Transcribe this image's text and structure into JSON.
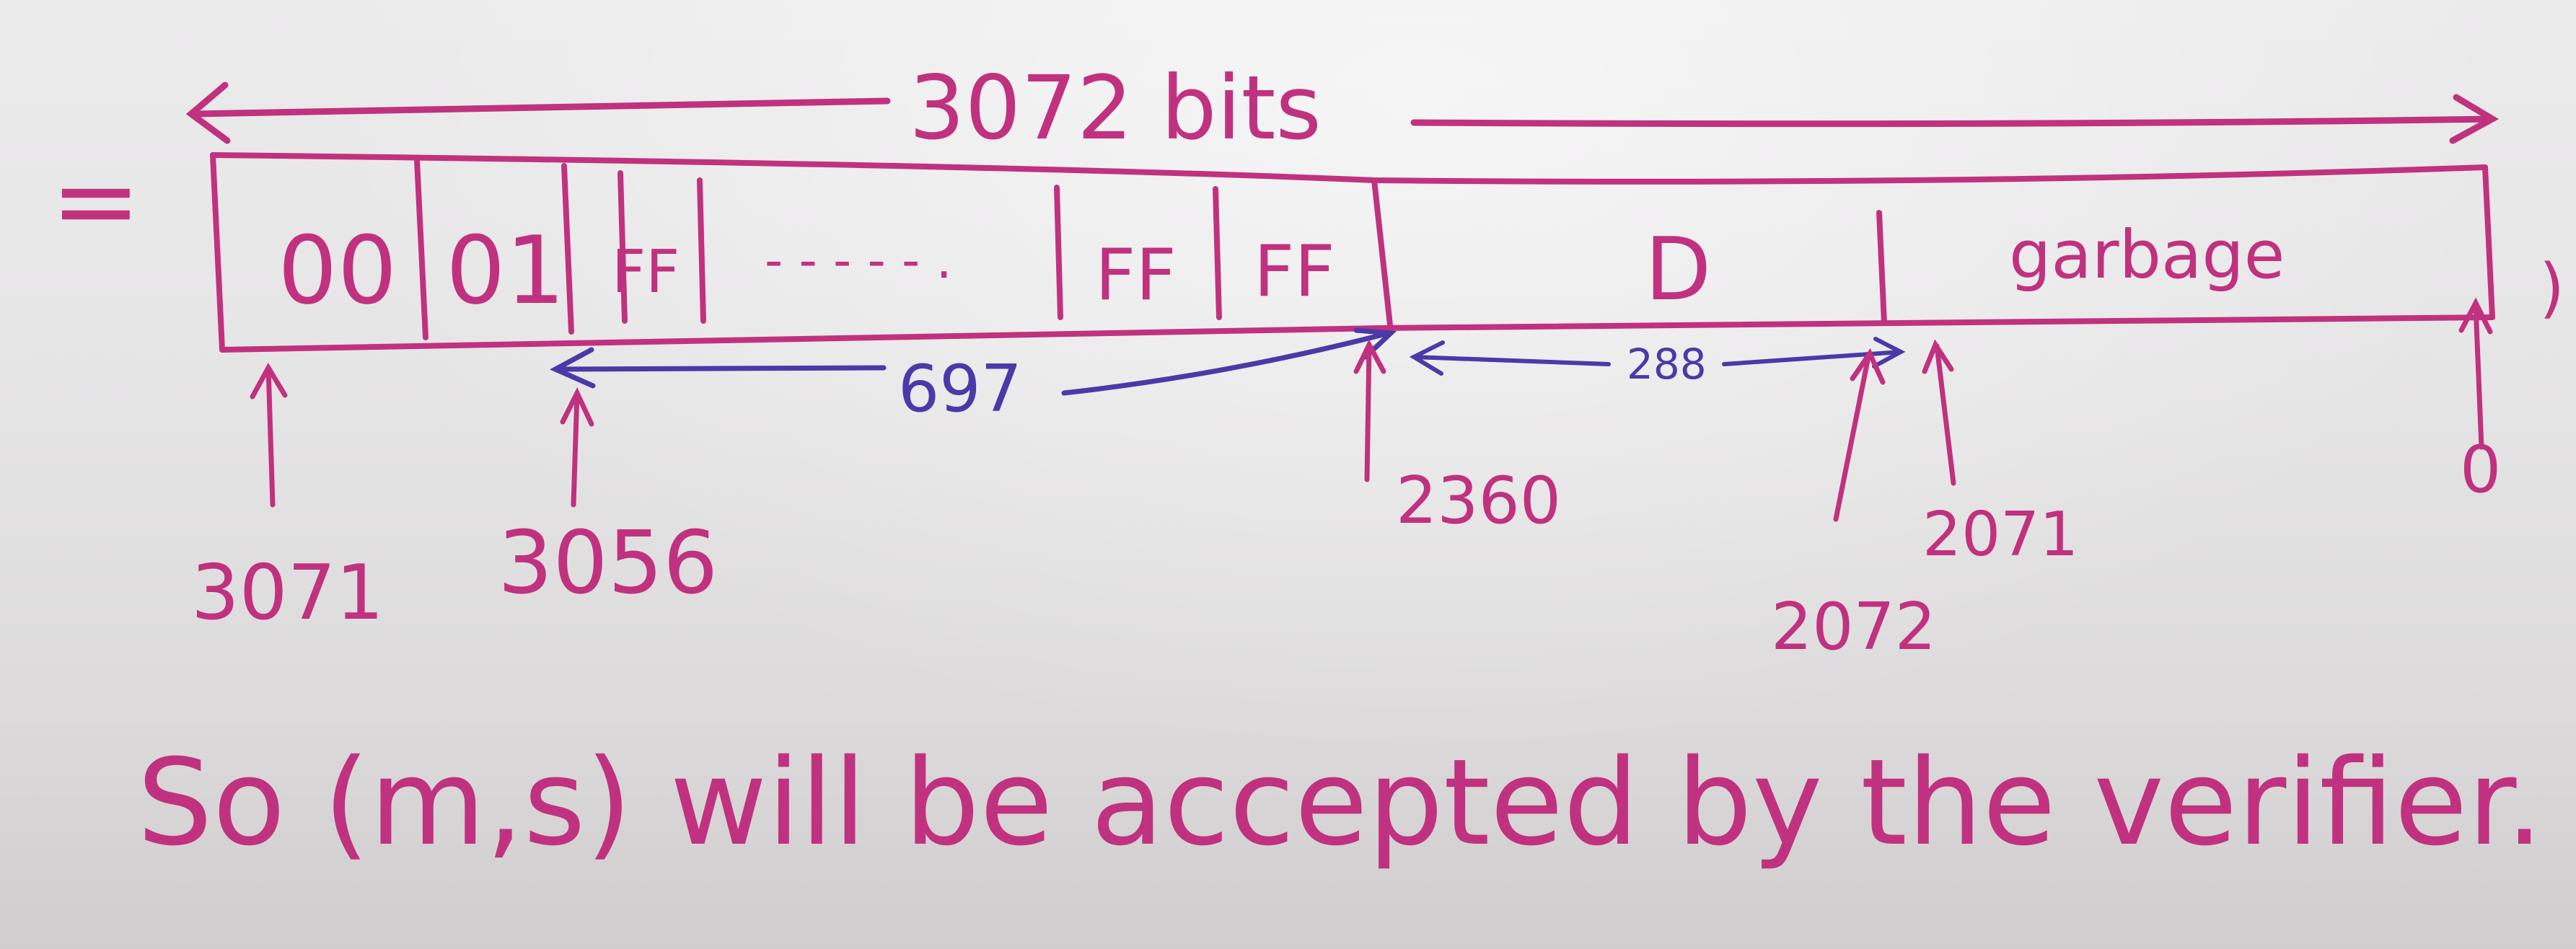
{
  "labels": {
    "equals": "=",
    "total_width": "3072 bits",
    "cell_00": "00",
    "cell_01": "01",
    "cell_ff_1": "FF",
    "cell_dots": "- - - - - .",
    "cell_ff_2": "FF",
    "cell_ff_3": "FF",
    "cell_d": "D",
    "cell_garbage": "garbage",
    "close_paren": ")",
    "span_697": "697",
    "span_288": "288",
    "pos_3071_left": "3071",
    "pos_3056": "3056",
    "pos_2360": "2360",
    "pos_2072": "2072",
    "pos_2071": "2071",
    "pos_0": "0",
    "conclusion": "So (m,s) will be accepted by the verifier. □"
  },
  "colors": {
    "marker_pink": "#c0327f",
    "marker_blue": "#4a3aa8",
    "board": "#e6e5e6"
  }
}
